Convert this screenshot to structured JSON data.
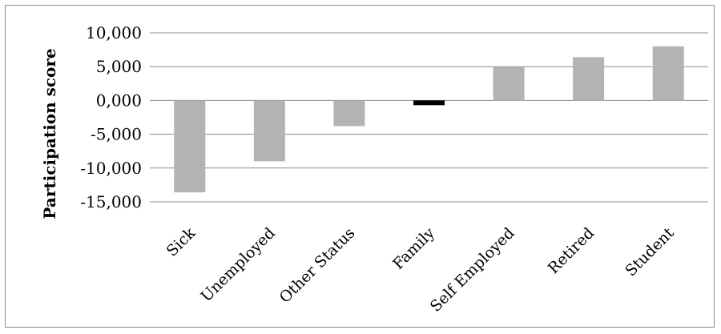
{
  "chart_data": {
    "type": "bar",
    "title": "",
    "xlabel": "",
    "ylabel": "Participation score",
    "categories": [
      "Sick",
      "Unemployed",
      "Other Status",
      "Family",
      "Self Employed",
      "Retired",
      "Student"
    ],
    "values": [
      -13.6,
      -9.0,
      -3.8,
      -0.7,
      5.0,
      6.4,
      8.0
    ],
    "bar_colors": [
      "#b3b3b3",
      "#b3b3b3",
      "#b3b3b3",
      "#000000",
      "#b3b3b3",
      "#b3b3b3",
      "#b3b3b3"
    ],
    "ylim": [
      -15,
      10
    ],
    "yticks": [
      10,
      5,
      0,
      -5,
      -10,
      -15
    ],
    "ytick_labels": [
      "10,000",
      "5,000",
      "0,000",
      "-5,000",
      "-10,000",
      "-15,000"
    ],
    "grid": true,
    "legend": "none"
  }
}
